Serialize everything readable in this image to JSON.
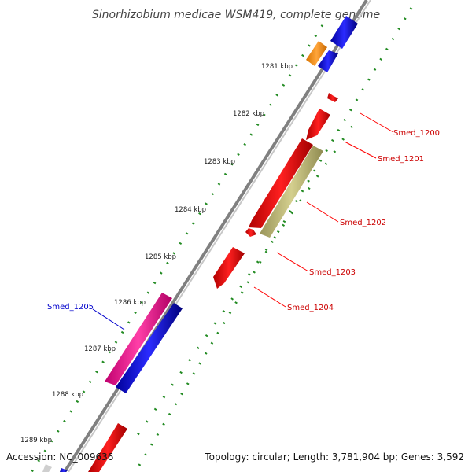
{
  "title": "Sinorhizobium medicae WSM419, complete genome",
  "footer": {
    "accession": "Accession: NC_009636",
    "summary": "Topology: circular; Length: 3,781,904 bp; Genes: 3,592"
  },
  "colors": {
    "forward_gene": "#0000ff",
    "reverse_gene": "#ff0000",
    "orange_feature": "#f7941d",
    "pink_feature": "#ff1493",
    "khaki_feature": "#bdb76b",
    "backbone": "#808080",
    "gc_dots": "#228b22"
  },
  "scale_labels": [
    "1281 kbp",
    "1282 kbp",
    "1283 kbp",
    "1284 kbp",
    "1285 kbp",
    "1286 kbp",
    "1287 kbp",
    "1288 kbp",
    "1289 kbp"
  ],
  "gene_labels": [
    {
      "name": "Smed_1200",
      "color": "red"
    },
    {
      "name": "Smed_1201",
      "color": "red"
    },
    {
      "name": "Smed_1202",
      "color": "red"
    },
    {
      "name": "Smed_1203",
      "color": "red"
    },
    {
      "name": "Smed_1204",
      "color": "red"
    },
    {
      "name": "Smed_1205",
      "color": "blue"
    }
  ]
}
